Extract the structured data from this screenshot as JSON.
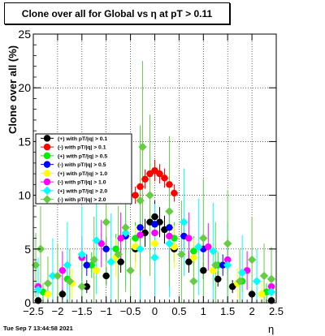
{
  "chart_data": {
    "type": "scatter",
    "title": "Clone  over all for Global vs    η at pT > 0.11",
    "xlabel": "η",
    "ylabel": "Clone  over all (%)",
    "xlim": [
      -2.5,
      2.5
    ],
    "ylim": [
      0,
      25
    ],
    "xticks": [
      -2.5,
      -2,
      -1.5,
      -1,
      -0.5,
      0,
      0.5,
      1,
      1.5,
      2,
      2.5
    ],
    "xtick_labels": [
      "−2.5",
      "−2",
      "−1.5",
      "−1",
      "−0.5",
      "0",
      "0.5",
      "1",
      "1.5",
      "2",
      "2.5"
    ],
    "yticks": [
      0,
      5,
      10,
      15,
      20,
      25
    ],
    "ytick_labels": [
      "0",
      "5",
      "10",
      "15",
      "20",
      "25"
    ],
    "grid": true,
    "legend_position": "left-middle",
    "series": [
      {
        "name": "(+) with pT/|q| > 0.1",
        "color": "#000000",
        "marker": "circle",
        "x": [
          -2.4,
          -1.9,
          -1.4,
          -1.0,
          -0.7,
          -0.4,
          -0.2,
          -0.1,
          0.0,
          0.1,
          0.2,
          0.4,
          0.7,
          1.0,
          1.3,
          1.6,
          2.0,
          2.4
        ],
        "y": [
          0.2,
          0.8,
          1.5,
          2.5,
          3.8,
          5.0,
          6.5,
          7.5,
          8.0,
          7.5,
          6.8,
          5.0,
          3.8,
          3.0,
          2.2,
          1.5,
          0.8,
          0.2
        ],
        "err": [
          0.3,
          0.5,
          0.6,
          0.8,
          1.0,
          1.2,
          1.3,
          1.4,
          1.5,
          1.4,
          1.3,
          1.2,
          1.0,
          0.8,
          0.7,
          0.6,
          0.5,
          0.3
        ]
      },
      {
        "name": "(-) with pT/|q| > 0.1",
        "color": "#ff0000",
        "marker": "circle",
        "x": [
          -0.4,
          -0.3,
          -0.2,
          -0.1,
          0.0,
          0.1,
          0.2,
          0.3,
          0.4
        ],
        "y": [
          10.0,
          10.8,
          11.5,
          12.0,
          12.3,
          12.0,
          11.6,
          11.0,
          10.2
        ],
        "err": [
          0.8,
          0.8,
          0.9,
          0.9,
          1.0,
          0.9,
          0.9,
          0.8,
          0.8
        ]
      },
      {
        "name": "(+) with pT/|q| > 0.5",
        "color": "#00ee00",
        "marker": "circle",
        "x": [
          -2.3,
          -1.8,
          -1.3,
          -0.8,
          -0.4,
          0.0,
          0.4,
          0.8,
          1.3,
          1.8,
          2.3
        ],
        "y": [
          1.0,
          2.2,
          3.5,
          5.0,
          6.0,
          6.5,
          6.0,
          4.8,
          3.5,
          2.0,
          1.0
        ],
        "err": [
          0.8,
          1.0,
          1.2,
          1.4,
          1.5,
          1.6,
          1.5,
          1.4,
          1.2,
          1.0,
          0.8
        ]
      },
      {
        "name": "(-) with pT/|q| > 0.5",
        "color": "#0000ff",
        "marker": "circle",
        "x": [
          -1.4,
          -1.0,
          -0.6,
          -0.3,
          0.0,
          0.3,
          0.6,
          1.0,
          1.4
        ],
        "y": [
          3.5,
          5.0,
          6.2,
          7.0,
          7.3,
          7.0,
          6.2,
          5.0,
          3.5
        ],
        "err": [
          1.0,
          1.1,
          1.2,
          1.3,
          1.3,
          1.3,
          1.2,
          1.1,
          1.0
        ]
      },
      {
        "name": "(+) with pT/|q| > 1.0",
        "color": "#ffff00",
        "marker": "circle",
        "x": [
          -2.2,
          -1.7,
          -1.2,
          -0.8,
          -0.4,
          0.0,
          0.4,
          0.8,
          1.2,
          1.7,
          2.2
        ],
        "y": [
          0.8,
          1.8,
          3.0,
          4.2,
          5.2,
          5.5,
          5.2,
          4.2,
          3.0,
          1.8,
          0.8
        ],
        "err": [
          1.2,
          1.4,
          1.6,
          1.8,
          2.0,
          2.0,
          2.0,
          1.8,
          1.6,
          1.4,
          1.2
        ]
      },
      {
        "name": "(-) with pT/|q| > 1.0",
        "color": "#ff00ff",
        "marker": "circle",
        "x": [
          -2.4,
          -1.9,
          -1.5,
          -1.1,
          -0.7,
          -0.3,
          0.0,
          0.3,
          0.7,
          1.1,
          1.5,
          1.9,
          2.4
        ],
        "y": [
          1.5,
          3.0,
          4.2,
          5.5,
          6.0,
          6.3,
          6.5,
          6.2,
          6.0,
          5.2,
          4.0,
          3.0,
          1.5
        ],
        "err": [
          1.5,
          1.8,
          2.0,
          2.2,
          2.4,
          2.5,
          2.5,
          2.5,
          2.4,
          2.2,
          2.0,
          1.8,
          1.5
        ]
      },
      {
        "name": "(+) with pT/|q| > 2.0",
        "color": "#00ffff",
        "marker": "diamond",
        "x": [
          -2.4,
          -2.1,
          -1.8,
          -1.5,
          -1.2,
          -0.9,
          -0.6,
          -0.3,
          0.0,
          0.3,
          0.6,
          0.9,
          1.2,
          1.5,
          1.8,
          2.1,
          2.4
        ],
        "y": [
          1.2,
          2.5,
          3.5,
          4.5,
          5.8,
          3.8,
          6.5,
          5.0,
          4.2,
          5.5,
          7.5,
          5.2,
          4.8,
          3.5,
          2.8,
          2.0,
          1.0
        ],
        "err": [
          3.0,
          3.5,
          4.0,
          4.5,
          5.0,
          4.5,
          5.0,
          5.0,
          5.0,
          5.0,
          5.0,
          4.5,
          4.5,
          4.0,
          3.5,
          3.0,
          2.5
        ]
      },
      {
        "name": "(-) with pT/|q| > 2.0",
        "color": "#66cc44",
        "marker": "diamond",
        "x": [
          -2.45,
          -2.35,
          -2.2,
          -2.0,
          -1.75,
          -1.5,
          -1.25,
          -1.0,
          -0.75,
          -0.6,
          -0.5,
          -0.3,
          -0.25,
          -0.1,
          0.3,
          0.55,
          0.8,
          1.0,
          1.25,
          1.5,
          1.75,
          2.0,
          2.25,
          2.4
        ],
        "y": [
          3.5,
          5.0,
          1.8,
          2.5,
          2.0,
          1.5,
          4.0,
          7.5,
          4.5,
          7.0,
          3.0,
          9.5,
          14.5,
          10.0,
          8.5,
          4.5,
          2.0,
          6.0,
          3.5,
          5.5,
          2.0,
          4.0,
          2.5,
          2.2
        ],
        "err": [
          3.0,
          4.0,
          2.5,
          3.0,
          3.0,
          2.5,
          4.0,
          6.0,
          4.5,
          6.0,
          3.0,
          7.0,
          8.0,
          7.5,
          7.0,
          5.0,
          2.5,
          5.5,
          4.0,
          5.0,
          3.0,
          4.0,
          3.0,
          3.0
        ]
      }
    ]
  },
  "footer_text": "Tue Sep  7 13:44:58 2021"
}
